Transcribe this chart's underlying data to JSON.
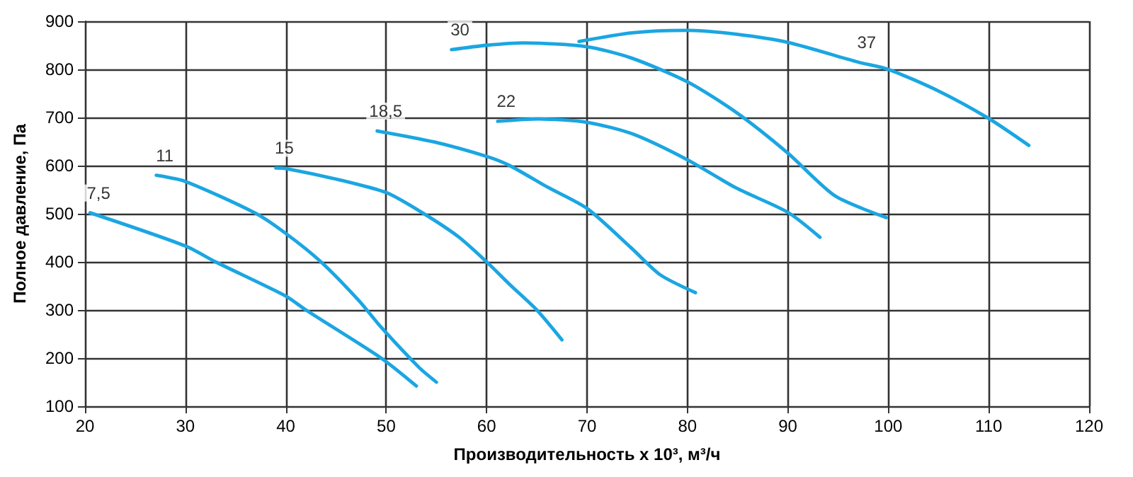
{
  "chart_data": {
    "type": "line",
    "xlabel": "Производительность x 10³, м³/ч",
    "ylabel": "Полное давление, Па",
    "xlim": [
      20,
      120
    ],
    "xticks": [
      20,
      30,
      40,
      50,
      60,
      70,
      80,
      90,
      100,
      110,
      120
    ],
    "ylim": [
      100,
      900
    ],
    "yticks": [
      100,
      200,
      300,
      400,
      500,
      600,
      700,
      800,
      900
    ],
    "grid": true,
    "marker": "none",
    "line_style": "solid",
    "series": [
      {
        "color": "#1ba6e2",
        "x": [
          20.5,
          30,
          33,
          40,
          42,
          49.5,
          53
        ],
        "values": [
          502,
          433,
          400,
          329,
          300,
          200,
          142
        ]
      },
      {
        "color": "#1ba6e2",
        "x": [
          27.1,
          30,
          36.9,
          40,
          43.5,
          47.3,
          49.5,
          53.3,
          55
        ],
        "values": [
          580,
          567,
          502,
          459,
          400,
          319,
          264,
          180,
          150
        ]
      },
      {
        "color": "#1ba6e2",
        "x": [
          39,
          40,
          45.4,
          50,
          53.6,
          57.2,
          60,
          62.3,
          65,
          67.5
        ],
        "values": [
          595,
          594,
          570,
          544,
          502,
          452,
          400,
          353,
          300,
          238
        ]
      },
      {
        "color": "#1ba6e2",
        "x": [
          49.1,
          54.8,
          60,
          62.3,
          66,
          70,
          74.5,
          77.3,
          80.8
        ],
        "values": [
          672,
          649,
          619,
          600,
          556,
          511,
          427,
          373,
          336
        ]
      },
      {
        "color": "#1ba6e2",
        "x": [
          61.1,
          65.1,
          70,
          74.5,
          80,
          84.9,
          90,
          93.2
        ],
        "values": [
          692,
          697,
          690,
          666,
          612,
          553,
          503,
          451
        ]
      },
      {
        "color": "#1ba6e2",
        "x": [
          56.5,
          60,
          63.7,
          70,
          74.5,
          80,
          84.9,
          90,
          94.7,
          99.8
        ],
        "values": [
          841,
          850,
          855,
          847,
          823,
          774,
          710,
          626,
          537,
          492
        ]
      },
      {
        "color": "#1ba6e2",
        "x": [
          69.2,
          74.5,
          80,
          84.9,
          90,
          97,
          100,
          105,
          110,
          114
        ],
        "values": [
          858,
          876,
          881,
          873,
          856,
          815,
          800,
          755,
          698,
          642
        ]
      }
    ],
    "annotations": [
      {
        "text": "7,5",
        "x": 20.5,
        "y": 502
      },
      {
        "text": "11",
        "x": 27.1,
        "y": 580
      },
      {
        "text": "15",
        "x": 39,
        "y": 595
      },
      {
        "text": "18,5",
        "x": 49.1,
        "y": 672
      },
      {
        "text": "22",
        "x": 61.1,
        "y": 692
      },
      {
        "text": "30",
        "x": 56.5,
        "y": 841
      },
      {
        "text": "37",
        "x": 97,
        "y": 815
      }
    ]
  }
}
